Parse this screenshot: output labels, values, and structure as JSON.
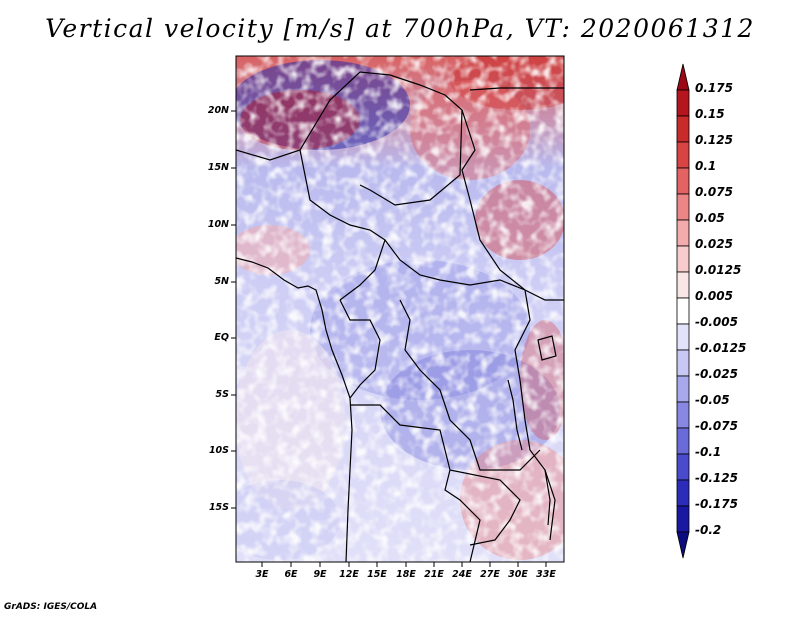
{
  "title": "Vertical velocity [m/s] at 700hPa, VT: 2020061312",
  "footer": "GrADS: IGES/COLA",
  "map": {
    "lat_labels": [
      "20N",
      "15N",
      "10N",
      "5N",
      "EQ",
      "5S",
      "10S",
      "15S"
    ],
    "lon_labels": [
      "3E",
      "6E",
      "9E",
      "12E",
      "15E",
      "18E",
      "21E",
      "24E",
      "27E",
      "30E",
      "33E"
    ]
  },
  "colorbar": {
    "levels": [
      "0.175",
      "0.15",
      "0.125",
      "0.1",
      "0.075",
      "0.05",
      "0.025",
      "0.0125",
      "0.005",
      "-0.005",
      "-0.0125",
      "-0.025",
      "-0.05",
      "-0.075",
      "-0.1",
      "-0.125",
      "-0.175",
      "-0.2"
    ],
    "colors": [
      "#9b0a14",
      "#b5151d",
      "#c92a2a",
      "#d84444",
      "#e36262",
      "#ec8686",
      "#f4abab",
      "#f8cccc",
      "#fbe6e6",
      "#ffffff",
      "#e2e2fa",
      "#c8c8f4",
      "#a8a8ec",
      "#8888e2",
      "#6a6ad8",
      "#4a4acc",
      "#2c2cba",
      "#1818a0",
      "#0c0c80"
    ]
  }
}
